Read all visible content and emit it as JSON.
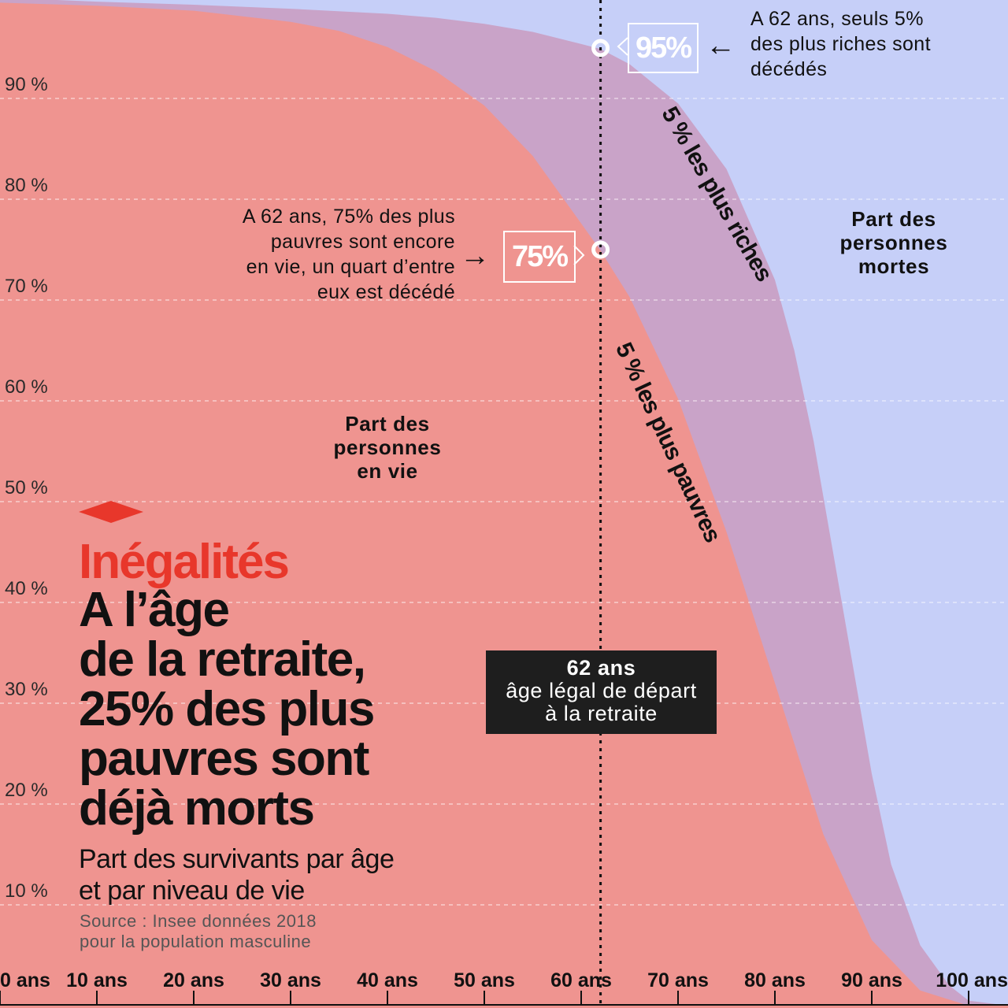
{
  "chart_data": {
    "type": "area",
    "x_unit": "ans",
    "xlim": [
      0,
      100
    ],
    "ylim": [
      0,
      100
    ],
    "y_tick_labels": [
      "10 %",
      "20 %",
      "30 %",
      "40 %",
      "50 %",
      "60 %",
      "70 %",
      "80 %",
      "90 %"
    ],
    "y_ticks": [
      10,
      20,
      30,
      40,
      50,
      60,
      70,
      80,
      90
    ],
    "x_tick_labels": [
      "0 ans",
      "10 ans",
      "20 ans",
      "30 ans",
      "40 ans",
      "50 ans",
      "60 ans",
      "70 ans",
      "80 ans",
      "90 ans",
      "100 ans"
    ],
    "x_ticks": [
      0,
      10,
      20,
      30,
      40,
      50,
      60,
      70,
      80,
      90,
      100
    ],
    "grid": true,
    "series": [
      {
        "name": "5 % les plus riches",
        "color": "#c9a3c8",
        "x": [
          0,
          10,
          20,
          30,
          40,
          45,
          50,
          55,
          60,
          62,
          65,
          70,
          75,
          80,
          82,
          84,
          86,
          88,
          90,
          92,
          95,
          98,
          100
        ],
        "y": [
          100,
          99.6,
          99.3,
          98.9,
          98.4,
          98.0,
          97.4,
          96.6,
          95.4,
          94.9,
          93.4,
          89.5,
          83.0,
          72.0,
          65.0,
          56.0,
          45.0,
          34.0,
          23.0,
          14.0,
          6.0,
          2.0,
          0.5
        ]
      },
      {
        "name": "5 % les plus pauvres",
        "color": "#ef9490",
        "x": [
          0,
          10,
          20,
          30,
          35,
          40,
          45,
          50,
          55,
          60,
          62,
          65,
          70,
          75,
          80,
          85,
          90,
          95,
          100
        ],
        "y": [
          99.5,
          99.2,
          98.7,
          97.6,
          96.7,
          95.1,
          92.7,
          89.3,
          84.3,
          77.6,
          74.9,
          70.3,
          60.2,
          47.0,
          32.0,
          17.0,
          6.5,
          1.5,
          0.0
        ]
      }
    ],
    "markers": [
      {
        "x": 62,
        "y": 95,
        "label": "95%"
      },
      {
        "x": 62,
        "y": 75,
        "label": "75%"
      }
    ],
    "reference_line": {
      "x": 62,
      "label_bold": "62 ans",
      "label_lines": [
        "âge légal de départ",
        "à la retraite"
      ]
    },
    "colors": {
      "background": "#c6cff8",
      "accent": "#e8372b",
      "callout": "#1e1e1e"
    }
  },
  "texts": {
    "tag": "Inégalités",
    "headline_lines": [
      "A l’âge",
      "de la retraite,",
      "25% des plus",
      "pauvres sont",
      "déjà morts"
    ],
    "subtitle_lines": [
      "Part des survivants par âge",
      "et par niveau de vie"
    ],
    "source_lines": [
      "Source : Insee données 2018",
      "pour la population masculine"
    ],
    "note_rich": [
      "A 62 ans, seuls 5%",
      "des plus riches sont",
      "décédés"
    ],
    "note_poor": [
      "A 62 ans, 75% des plus",
      "pauvres sont encore",
      "en vie, un quart d’entre",
      "eux est décédé"
    ],
    "region_alive": [
      "Part des",
      "personnes",
      "en vie"
    ],
    "region_dead": [
      "Part des",
      "personnes",
      "mortes"
    ],
    "label_rich": "5 % les plus riches",
    "label_poor": "5 % les plus pauvres",
    "box_95": "95%",
    "box_75": "75%",
    "arrow_left": "←",
    "arrow_right": "→"
  }
}
